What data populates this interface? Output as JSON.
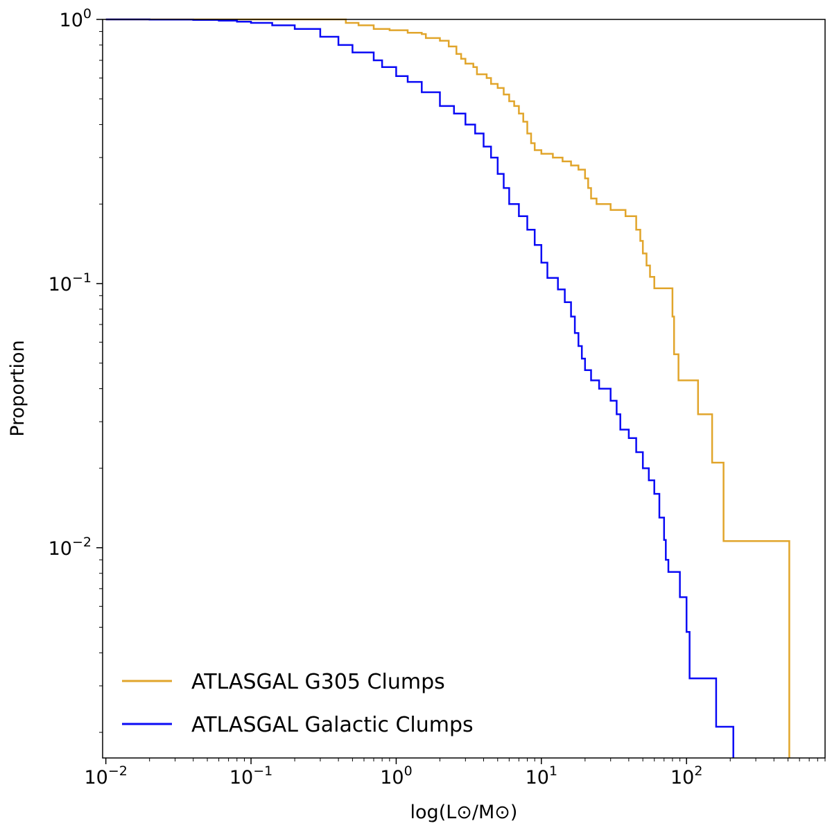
{
  "chart_data": {
    "type": "line",
    "xlabel": "log(L⊙/M⊙)",
    "ylabel": "Proportion",
    "x_scale": "log",
    "y_scale": "log",
    "xlim": [
      0.0095,
      900
    ],
    "ylim": [
      0.0016,
      1.0
    ],
    "x_ticks": [
      {
        "value": 0.01,
        "base": "10",
        "exp": "−2"
      },
      {
        "value": 0.1,
        "base": "10",
        "exp": "−1"
      },
      {
        "value": 1,
        "base": "10",
        "exp": "0"
      },
      {
        "value": 10,
        "base": "10",
        "exp": "1"
      },
      {
        "value": 100,
        "base": "10",
        "exp": "2"
      }
    ],
    "y_ticks": [
      {
        "value": 1,
        "base": "10",
        "exp": "0"
      },
      {
        "value": 0.1,
        "base": "10",
        "exp": "−1"
      },
      {
        "value": 0.01,
        "base": "10",
        "exp": "−2"
      }
    ],
    "grid": false,
    "legend_position": "bottom-left",
    "series": [
      {
        "name": "ATLASGAL G305 Clumps",
        "color": "#e1a52b",
        "step": true,
        "points": [
          [
            0.01,
            1.0
          ],
          [
            0.4,
            1.0
          ],
          [
            0.45,
            0.97
          ],
          [
            0.55,
            0.95
          ],
          [
            0.7,
            0.92
          ],
          [
            0.9,
            0.91
          ],
          [
            1.2,
            0.89
          ],
          [
            1.5,
            0.88
          ],
          [
            1.6,
            0.85
          ],
          [
            2.0,
            0.83
          ],
          [
            2.3,
            0.79
          ],
          [
            2.6,
            0.74
          ],
          [
            2.8,
            0.71
          ],
          [
            3.0,
            0.68
          ],
          [
            3.4,
            0.66
          ],
          [
            3.6,
            0.62
          ],
          [
            4.2,
            0.6
          ],
          [
            4.5,
            0.57
          ],
          [
            5.0,
            0.55
          ],
          [
            5.5,
            0.52
          ],
          [
            6.0,
            0.49
          ],
          [
            6.5,
            0.47
          ],
          [
            7.0,
            0.44
          ],
          [
            7.5,
            0.41
          ],
          [
            8.0,
            0.37
          ],
          [
            8.5,
            0.34
          ],
          [
            9.0,
            0.32
          ],
          [
            10.0,
            0.31
          ],
          [
            12.0,
            0.3
          ],
          [
            14.0,
            0.29
          ],
          [
            16.0,
            0.28
          ],
          [
            18.0,
            0.27
          ],
          [
            20.0,
            0.25
          ],
          [
            21.0,
            0.23
          ],
          [
            22.0,
            0.21
          ],
          [
            24.0,
            0.2
          ],
          [
            30.0,
            0.19
          ],
          [
            38.0,
            0.18
          ],
          [
            45.0,
            0.16
          ],
          [
            48.0,
            0.145
          ],
          [
            50.0,
            0.13
          ],
          [
            53.0,
            0.117
          ],
          [
            56.0,
            0.106
          ],
          [
            60.0,
            0.096
          ],
          [
            80.0,
            0.075
          ],
          [
            82.0,
            0.054
          ],
          [
            88.0,
            0.043
          ],
          [
            120.0,
            0.032
          ],
          [
            150.0,
            0.021
          ],
          [
            180.0,
            0.0106
          ],
          [
            510.0,
            0.0016
          ]
        ]
      },
      {
        "name": "ATLASGAL Galactic Clumps",
        "color": "#0a0af5",
        "step": true,
        "points": [
          [
            0.01,
            1.0
          ],
          [
            0.02,
            0.998
          ],
          [
            0.04,
            0.995
          ],
          [
            0.06,
            0.99
          ],
          [
            0.08,
            0.98
          ],
          [
            0.1,
            0.97
          ],
          [
            0.14,
            0.95
          ],
          [
            0.2,
            0.92
          ],
          [
            0.3,
            0.86
          ],
          [
            0.4,
            0.8
          ],
          [
            0.5,
            0.75
          ],
          [
            0.7,
            0.7
          ],
          [
            0.8,
            0.66
          ],
          [
            1.0,
            0.61
          ],
          [
            1.2,
            0.58
          ],
          [
            1.5,
            0.53
          ],
          [
            2.0,
            0.47
          ],
          [
            2.5,
            0.44
          ],
          [
            3.0,
            0.4
          ],
          [
            3.5,
            0.37
          ],
          [
            4.0,
            0.33
          ],
          [
            4.5,
            0.3
          ],
          [
            5.0,
            0.26
          ],
          [
            5.5,
            0.23
          ],
          [
            6.0,
            0.2
          ],
          [
            7.0,
            0.18
          ],
          [
            8.0,
            0.16
          ],
          [
            9.0,
            0.14
          ],
          [
            10.0,
            0.12
          ],
          [
            11.0,
            0.105
          ],
          [
            13.0,
            0.095
          ],
          [
            14.5,
            0.085
          ],
          [
            16.0,
            0.075
          ],
          [
            17.0,
            0.065
          ],
          [
            18.0,
            0.058
          ],
          [
            19.0,
            0.052
          ],
          [
            20.0,
            0.047
          ],
          [
            22.0,
            0.043
          ],
          [
            25.0,
            0.04
          ],
          [
            30.0,
            0.036
          ],
          [
            33.0,
            0.032
          ],
          [
            35.0,
            0.028
          ],
          [
            40.0,
            0.026
          ],
          [
            45.0,
            0.023
          ],
          [
            50.0,
            0.02
          ],
          [
            55.0,
            0.018
          ],
          [
            60.0,
            0.016
          ],
          [
            65.0,
            0.013
          ],
          [
            70.0,
            0.0107
          ],
          [
            72.0,
            0.009
          ],
          [
            75.0,
            0.0081
          ],
          [
            90.0,
            0.0065
          ],
          [
            100.0,
            0.0048
          ],
          [
            105.0,
            0.0032
          ],
          [
            160.0,
            0.0021
          ],
          [
            210.0,
            0.0016
          ]
        ]
      }
    ]
  }
}
